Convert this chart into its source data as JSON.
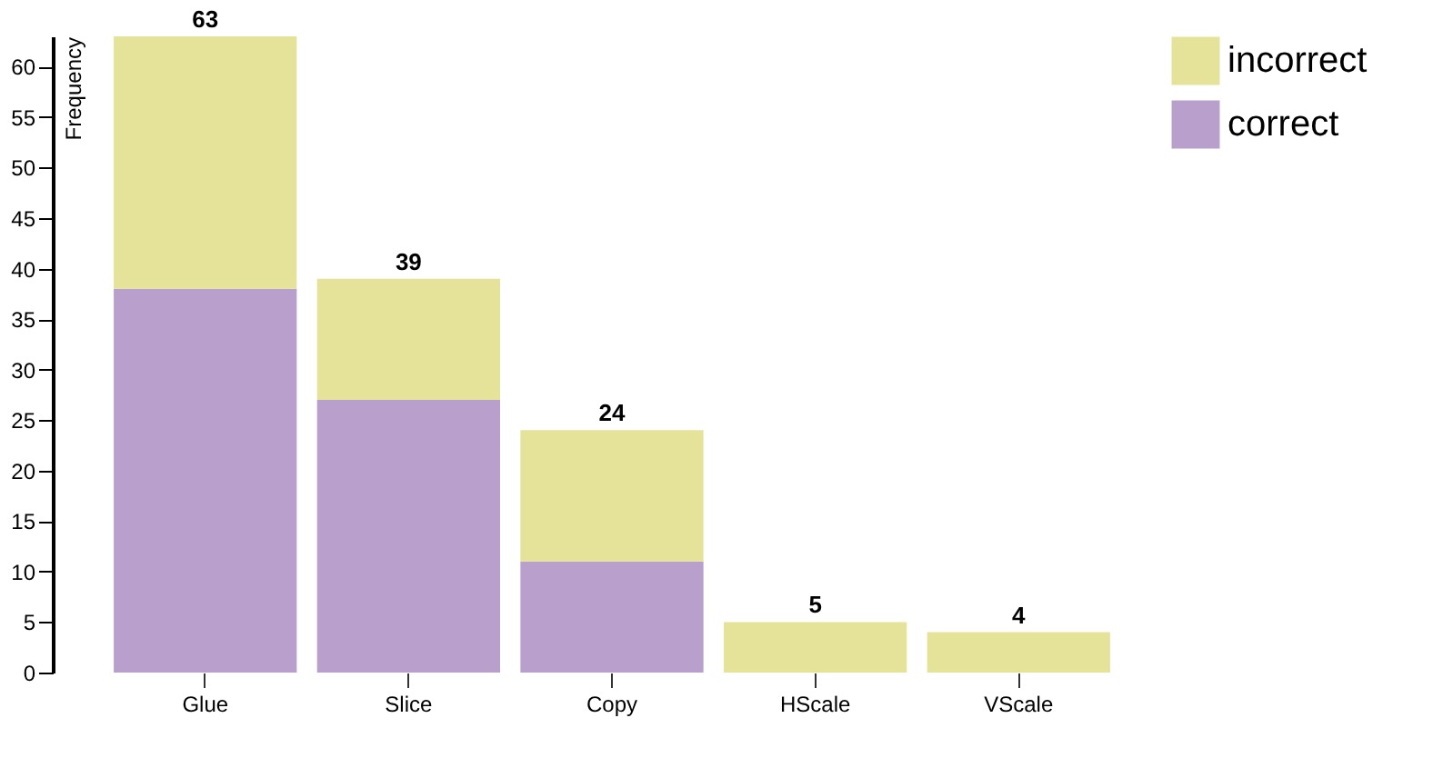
{
  "chart_data": {
    "type": "bar",
    "stacked": true,
    "ylabel": "Frequency",
    "categories": [
      "Glue",
      "Slice",
      "Copy",
      "HScale",
      "VScale"
    ],
    "series": [
      {
        "name": "correct",
        "color": "#b89fcc",
        "values": [
          38,
          27,
          11,
          0,
          0
        ]
      },
      {
        "name": "incorrect",
        "color": "#e5e39a",
        "values": [
          25,
          12,
          13,
          5,
          4
        ]
      }
    ],
    "totals": [
      "63",
      "39",
      "24",
      "5",
      "4"
    ],
    "ylim": [
      0,
      63
    ],
    "yticks": [
      0,
      5,
      10,
      15,
      20,
      25,
      30,
      35,
      40,
      45,
      50,
      55,
      60
    ],
    "grid": false,
    "legend": "top right"
  }
}
